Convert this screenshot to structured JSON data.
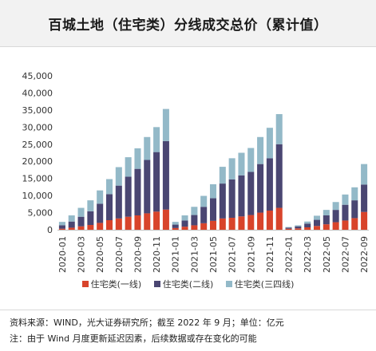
{
  "title": "百城土地（住宅类）分线成交总价（累计值）",
  "source": "资料来源：WIND，光大证券研究所；截至 2022 年 9 月；单位：亿元",
  "note": "注：由于 Wind 月度更新延迟因素，后续数据或存在变化的可能",
  "colors": {
    "tier1": "#d8442b",
    "tier2": "#4a4672",
    "tier3": "#93b9c8"
  },
  "chart_data": {
    "type": "bar",
    "stacked": true,
    "title": "百城土地（住宅类）分线成交总价（累计值）",
    "xlabel": "",
    "ylabel": "",
    "ylim": [
      0,
      45000
    ],
    "yticks": [
      0,
      5000,
      10000,
      15000,
      20000,
      25000,
      30000,
      35000,
      40000,
      45000
    ],
    "ytick_labels": [
      "0",
      "5,000",
      "10,000",
      "15,000",
      "20,000",
      "25,000",
      "30,000",
      "35,000",
      "40,000",
      "45,000"
    ],
    "grid": false,
    "legend_position": "bottom",
    "categories": [
      "2020-01",
      "2020-02",
      "2020-03",
      "2020-04",
      "2020-05",
      "2020-06",
      "2020-07",
      "2020-08",
      "2020-09",
      "2020-10",
      "2020-11",
      "2020-12",
      "2021-01",
      "2021-02",
      "2021-03",
      "2021-04",
      "2021-05",
      "2021-06",
      "2021-07",
      "2021-08",
      "2021-09",
      "2021-10",
      "2021-11",
      "2021-12",
      "2022-01",
      "2022-02",
      "2022-03",
      "2022-04",
      "2022-05",
      "2022-06",
      "2022-07",
      "2022-08",
      "2022-09"
    ],
    "xtick_labels": [
      "2020-01",
      "2020-03",
      "2020-05",
      "2020-07",
      "2020-09",
      "2020-11",
      "2021-01",
      "2021-03",
      "2021-05",
      "2021-07",
      "2021-09",
      "2021-11",
      "2022-01",
      "2022-03",
      "2022-05",
      "2022-07",
      "2022-09"
    ],
    "series": [
      {
        "name": "住宅类(一线)",
        "values": [
          300,
          600,
          1000,
          1400,
          2000,
          2800,
          3300,
          3800,
          4200,
          4800,
          5300,
          5900,
          500,
          900,
          1300,
          1900,
          2600,
          3300,
          3500,
          3900,
          4300,
          5000,
          5600,
          6400,
          300,
          400,
          700,
          1100,
          1600,
          2200,
          2700,
          3400,
          5200
        ]
      },
      {
        "name": "住宅类(二线)",
        "values": [
          1000,
          1800,
          2800,
          4000,
          5600,
          7600,
          9600,
          11700,
          13600,
          15600,
          17400,
          20000,
          1000,
          1800,
          3000,
          4800,
          6600,
          10200,
          11200,
          12000,
          12600,
          14200,
          15300,
          18600,
          300,
          600,
          1100,
          1800,
          2600,
          3600,
          4600,
          5200,
          8000
        ]
      },
      {
        "name": "住宅类(三四线)",
        "values": [
          1000,
          1800,
          2600,
          3200,
          3900,
          4400,
          5400,
          5700,
          6000,
          6700,
          7300,
          9400,
          800,
          1500,
          2400,
          3200,
          4100,
          4900,
          6200,
          6600,
          7000,
          7900,
          8900,
          8800,
          200,
          300,
          600,
          1200,
          1600,
          2300,
          3000,
          3800,
          6000
        ]
      }
    ]
  }
}
